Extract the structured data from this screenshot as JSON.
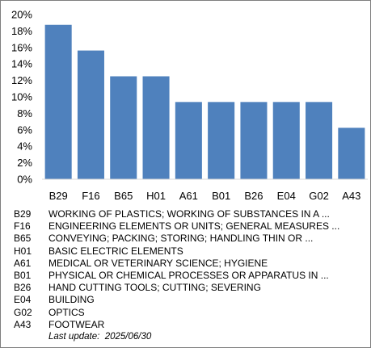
{
  "chart_data": {
    "type": "bar",
    "categories": [
      "B29",
      "F16",
      "B65",
      "H01",
      "A61",
      "B01",
      "B26",
      "E04",
      "G02",
      "A43"
    ],
    "values": [
      18.75,
      15.63,
      12.5,
      12.5,
      9.38,
      9.38,
      9.38,
      9.38,
      9.38,
      6.25
    ],
    "ylim": [
      0,
      20
    ],
    "yticks": [
      "0%",
      "2%",
      "4%",
      "6%",
      "8%",
      "10%",
      "12%",
      "14%",
      "16%",
      "18%",
      "20%"
    ],
    "bar_color": "#4f81bd",
    "grid": false,
    "legend": "bottom"
  },
  "legend": [
    {
      "code": "B29",
      "desc": "WORKING OF PLASTICS; WORKING OF SUBSTANCES IN A ..."
    },
    {
      "code": "F16",
      "desc": "ENGINEERING ELEMENTS OR UNITS; GENERAL MEASURES ..."
    },
    {
      "code": "B65",
      "desc": "CONVEYING; PACKING; STORING; HANDLING THIN OR ..."
    },
    {
      "code": "H01",
      "desc": "BASIC ELECTRIC ELEMENTS"
    },
    {
      "code": "A61",
      "desc": "MEDICAL OR VETERINARY SCIENCE; HYGIENE"
    },
    {
      "code": "B01",
      "desc": "PHYSICAL OR CHEMICAL PROCESSES OR APPARATUS IN ..."
    },
    {
      "code": "B26",
      "desc": "HAND CUTTING TOOLS; CUTTING; SEVERING"
    },
    {
      "code": "E04",
      "desc": "BUILDING"
    },
    {
      "code": "G02",
      "desc": "OPTICS"
    },
    {
      "code": "A43",
      "desc": "FOOTWEAR"
    }
  ],
  "last_update": "Last update:  2025/06/30"
}
